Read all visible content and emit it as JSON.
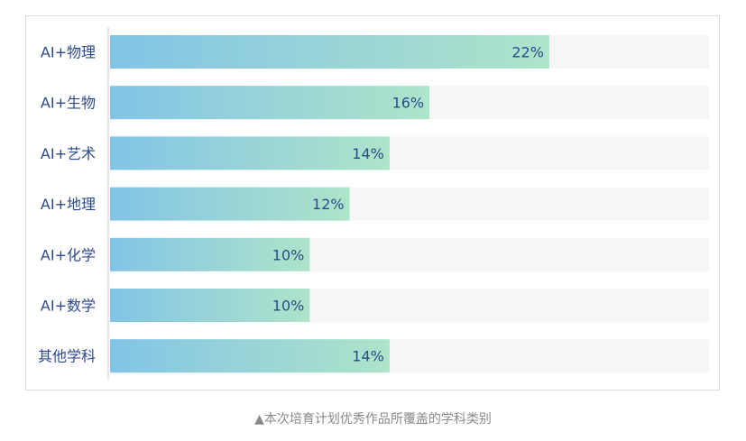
{
  "chart_data": {
    "type": "bar",
    "orientation": "horizontal",
    "categories": [
      "AI+物理",
      "AI+生物",
      "AI+艺术",
      "AI+地理",
      "AI+化学",
      "AI+数学",
      "其他学科"
    ],
    "values": [
      22,
      16,
      14,
      12,
      10,
      10,
      14
    ],
    "value_labels": [
      "22%",
      "16%",
      "14%",
      "12%",
      "10%",
      "10%",
      "14%"
    ],
    "unit": "%",
    "xlim": [
      0,
      30
    ],
    "grid": false,
    "legend": "none",
    "colors": {
      "bar_start": "#82c4e6",
      "bar_end": "#aee4c9",
      "track": "#f6f6f6",
      "label_text": "#2c4a8a",
      "value_text": "#2c4a8a",
      "axis": "#cccccc"
    }
  },
  "caption": "▲本次培育计划优秀作品所覆盖的学科类别"
}
